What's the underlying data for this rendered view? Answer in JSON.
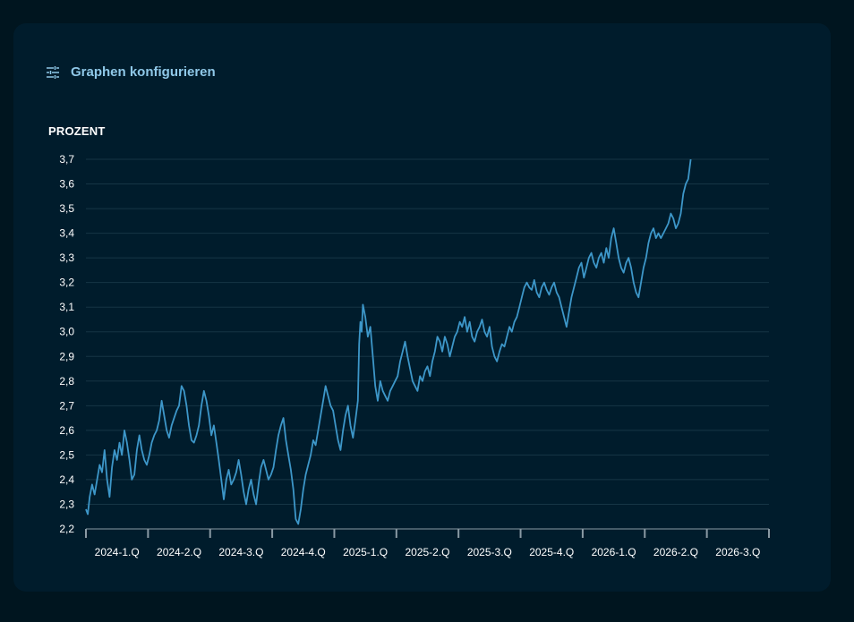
{
  "header": {
    "config_label": "Graphen konfigurieren",
    "config_icon": "sliders-icon"
  },
  "colors": {
    "page_bg": "#00151f",
    "card_bg": "#001c2c",
    "grid": "#163545",
    "line": "#3d97c9",
    "accent_text": "#8fc8e8",
    "text": "#ffffff"
  },
  "chart_data": {
    "type": "line",
    "ylabel": "PROZENT",
    "ylim": [
      2.2,
      3.7
    ],
    "yticks": [
      "2,2",
      "2,3",
      "2,4",
      "2,5",
      "2,6",
      "2,7",
      "2,8",
      "2,9",
      "3,0",
      "3,1",
      "3,2",
      "3,3",
      "3,4",
      "3,5",
      "3,6",
      "3,7"
    ],
    "xticks": [
      "2024-1.Q",
      "2024-2.Q",
      "2024-3.Q",
      "2024-4.Q",
      "2025-1.Q",
      "2025-2.Q",
      "2025-3.Q",
      "2025-4.Q",
      "2026-1.Q",
      "2026-2.Q",
      "2026-3.Q"
    ],
    "x_range_quarters": [
      0,
      11
    ],
    "grid": true,
    "series": [
      {
        "points": [
          [
            0.0,
            2.28
          ],
          [
            0.03,
            2.26
          ],
          [
            0.06,
            2.33
          ],
          [
            0.1,
            2.38
          ],
          [
            0.14,
            2.34
          ],
          [
            0.18,
            2.4
          ],
          [
            0.22,
            2.46
          ],
          [
            0.26,
            2.43
          ],
          [
            0.3,
            2.52
          ],
          [
            0.34,
            2.4
          ],
          [
            0.38,
            2.33
          ],
          [
            0.42,
            2.45
          ],
          [
            0.46,
            2.52
          ],
          [
            0.5,
            2.48
          ],
          [
            0.54,
            2.55
          ],
          [
            0.58,
            2.5
          ],
          [
            0.62,
            2.6
          ],
          [
            0.66,
            2.55
          ],
          [
            0.7,
            2.48
          ],
          [
            0.74,
            2.4
          ],
          [
            0.78,
            2.42
          ],
          [
            0.82,
            2.52
          ],
          [
            0.86,
            2.58
          ],
          [
            0.9,
            2.52
          ],
          [
            0.94,
            2.48
          ],
          [
            0.98,
            2.46
          ],
          [
            1.02,
            2.5
          ],
          [
            1.06,
            2.55
          ],
          [
            1.1,
            2.58
          ],
          [
            1.14,
            2.6
          ],
          [
            1.18,
            2.64
          ],
          [
            1.22,
            2.72
          ],
          [
            1.26,
            2.66
          ],
          [
            1.3,
            2.6
          ],
          [
            1.34,
            2.57
          ],
          [
            1.38,
            2.62
          ],
          [
            1.42,
            2.65
          ],
          [
            1.46,
            2.68
          ],
          [
            1.5,
            2.7
          ],
          [
            1.54,
            2.78
          ],
          [
            1.58,
            2.76
          ],
          [
            1.62,
            2.7
          ],
          [
            1.66,
            2.62
          ],
          [
            1.7,
            2.56
          ],
          [
            1.74,
            2.55
          ],
          [
            1.78,
            2.58
          ],
          [
            1.82,
            2.62
          ],
          [
            1.86,
            2.7
          ],
          [
            1.9,
            2.76
          ],
          [
            1.94,
            2.72
          ],
          [
            1.98,
            2.66
          ],
          [
            2.02,
            2.58
          ],
          [
            2.06,
            2.62
          ],
          [
            2.1,
            2.55
          ],
          [
            2.14,
            2.48
          ],
          [
            2.18,
            2.4
          ],
          [
            2.22,
            2.32
          ],
          [
            2.26,
            2.4
          ],
          [
            2.3,
            2.44
          ],
          [
            2.34,
            2.38
          ],
          [
            2.38,
            2.4
          ],
          [
            2.42,
            2.43
          ],
          [
            2.46,
            2.48
          ],
          [
            2.5,
            2.42
          ],
          [
            2.54,
            2.35
          ],
          [
            2.58,
            2.3
          ],
          [
            2.62,
            2.36
          ],
          [
            2.66,
            2.4
          ],
          [
            2.7,
            2.34
          ],
          [
            2.74,
            2.3
          ],
          [
            2.78,
            2.38
          ],
          [
            2.82,
            2.45
          ],
          [
            2.86,
            2.48
          ],
          [
            2.9,
            2.44
          ],
          [
            2.94,
            2.4
          ],
          [
            2.98,
            2.42
          ],
          [
            3.02,
            2.45
          ],
          [
            3.06,
            2.52
          ],
          [
            3.1,
            2.58
          ],
          [
            3.14,
            2.62
          ],
          [
            3.18,
            2.65
          ],
          [
            3.22,
            2.56
          ],
          [
            3.26,
            2.5
          ],
          [
            3.3,
            2.44
          ],
          [
            3.34,
            2.36
          ],
          [
            3.38,
            2.24
          ],
          [
            3.42,
            2.22
          ],
          [
            3.46,
            2.28
          ],
          [
            3.5,
            2.36
          ],
          [
            3.54,
            2.42
          ],
          [
            3.58,
            2.46
          ],
          [
            3.62,
            2.5
          ],
          [
            3.66,
            2.56
          ],
          [
            3.7,
            2.54
          ],
          [
            3.74,
            2.6
          ],
          [
            3.78,
            2.66
          ],
          [
            3.82,
            2.72
          ],
          [
            3.86,
            2.78
          ],
          [
            3.9,
            2.74
          ],
          [
            3.94,
            2.7
          ],
          [
            3.98,
            2.68
          ],
          [
            4.02,
            2.62
          ],
          [
            4.06,
            2.56
          ],
          [
            4.1,
            2.52
          ],
          [
            4.14,
            2.6
          ],
          [
            4.18,
            2.66
          ],
          [
            4.22,
            2.7
          ],
          [
            4.26,
            2.62
          ],
          [
            4.3,
            2.57
          ],
          [
            4.34,
            2.64
          ],
          [
            4.38,
            2.72
          ],
          [
            4.4,
            2.95
          ],
          [
            4.42,
            3.04
          ],
          [
            4.44,
            3.0
          ],
          [
            4.46,
            3.11
          ],
          [
            4.5,
            3.06
          ],
          [
            4.54,
            2.98
          ],
          [
            4.58,
            3.02
          ],
          [
            4.62,
            2.9
          ],
          [
            4.66,
            2.78
          ],
          [
            4.7,
            2.72
          ],
          [
            4.74,
            2.8
          ],
          [
            4.78,
            2.76
          ],
          [
            4.82,
            2.74
          ],
          [
            4.86,
            2.72
          ],
          [
            4.9,
            2.76
          ],
          [
            4.94,
            2.78
          ],
          [
            4.98,
            2.8
          ],
          [
            5.02,
            2.82
          ],
          [
            5.06,
            2.88
          ],
          [
            5.1,
            2.92
          ],
          [
            5.14,
            2.96
          ],
          [
            5.18,
            2.9
          ],
          [
            5.22,
            2.85
          ],
          [
            5.26,
            2.8
          ],
          [
            5.3,
            2.78
          ],
          [
            5.34,
            2.76
          ],
          [
            5.38,
            2.82
          ],
          [
            5.42,
            2.8
          ],
          [
            5.46,
            2.84
          ],
          [
            5.5,
            2.86
          ],
          [
            5.54,
            2.82
          ],
          [
            5.58,
            2.88
          ],
          [
            5.62,
            2.92
          ],
          [
            5.66,
            2.98
          ],
          [
            5.7,
            2.96
          ],
          [
            5.74,
            2.92
          ],
          [
            5.78,
            2.98
          ],
          [
            5.82,
            2.95
          ],
          [
            5.86,
            2.9
          ],
          [
            5.9,
            2.94
          ],
          [
            5.94,
            2.98
          ],
          [
            5.98,
            3.0
          ],
          [
            6.02,
            3.04
          ],
          [
            6.06,
            3.02
          ],
          [
            6.1,
            3.06
          ],
          [
            6.14,
            3.0
          ],
          [
            6.18,
            3.04
          ],
          [
            6.22,
            2.98
          ],
          [
            6.26,
            2.96
          ],
          [
            6.3,
            3.0
          ],
          [
            6.34,
            3.02
          ],
          [
            6.38,
            3.05
          ],
          [
            6.42,
            3.0
          ],
          [
            6.46,
            2.98
          ],
          [
            6.5,
            3.02
          ],
          [
            6.54,
            2.94
          ],
          [
            6.58,
            2.9
          ],
          [
            6.62,
            2.88
          ],
          [
            6.66,
            2.92
          ],
          [
            6.7,
            2.95
          ],
          [
            6.74,
            2.94
          ],
          [
            6.78,
            2.98
          ],
          [
            6.82,
            3.02
          ],
          [
            6.86,
            3.0
          ],
          [
            6.9,
            3.04
          ],
          [
            6.94,
            3.06
          ],
          [
            6.98,
            3.1
          ],
          [
            7.02,
            3.14
          ],
          [
            7.06,
            3.18
          ],
          [
            7.1,
            3.2
          ],
          [
            7.14,
            3.18
          ],
          [
            7.18,
            3.17
          ],
          [
            7.22,
            3.21
          ],
          [
            7.26,
            3.16
          ],
          [
            7.3,
            3.14
          ],
          [
            7.34,
            3.18
          ],
          [
            7.38,
            3.2
          ],
          [
            7.42,
            3.17
          ],
          [
            7.46,
            3.15
          ],
          [
            7.5,
            3.18
          ],
          [
            7.54,
            3.2
          ],
          [
            7.58,
            3.16
          ],
          [
            7.62,
            3.14
          ],
          [
            7.66,
            3.1
          ],
          [
            7.7,
            3.06
          ],
          [
            7.74,
            3.02
          ],
          [
            7.78,
            3.08
          ],
          [
            7.82,
            3.14
          ],
          [
            7.86,
            3.18
          ],
          [
            7.9,
            3.22
          ],
          [
            7.94,
            3.26
          ],
          [
            7.98,
            3.28
          ],
          [
            8.02,
            3.22
          ],
          [
            8.06,
            3.26
          ],
          [
            8.1,
            3.3
          ],
          [
            8.14,
            3.32
          ],
          [
            8.18,
            3.28
          ],
          [
            8.22,
            3.26
          ],
          [
            8.26,
            3.3
          ],
          [
            8.3,
            3.32
          ],
          [
            8.34,
            3.28
          ],
          [
            8.38,
            3.34
          ],
          [
            8.42,
            3.3
          ],
          [
            8.46,
            3.38
          ],
          [
            8.5,
            3.42
          ],
          [
            8.54,
            3.36
          ],
          [
            8.58,
            3.3
          ],
          [
            8.62,
            3.26
          ],
          [
            8.66,
            3.24
          ],
          [
            8.7,
            3.28
          ],
          [
            8.74,
            3.3
          ],
          [
            8.78,
            3.26
          ],
          [
            8.82,
            3.2
          ],
          [
            8.86,
            3.16
          ],
          [
            8.9,
            3.14
          ],
          [
            8.94,
            3.2
          ],
          [
            8.98,
            3.26
          ],
          [
            9.02,
            3.3
          ],
          [
            9.06,
            3.36
          ],
          [
            9.1,
            3.4
          ],
          [
            9.14,
            3.42
          ],
          [
            9.18,
            3.38
          ],
          [
            9.22,
            3.4
          ],
          [
            9.26,
            3.38
          ],
          [
            9.3,
            3.4
          ],
          [
            9.34,
            3.42
          ],
          [
            9.38,
            3.44
          ],
          [
            9.42,
            3.48
          ],
          [
            9.46,
            3.46
          ],
          [
            9.5,
            3.42
          ],
          [
            9.54,
            3.44
          ],
          [
            9.58,
            3.48
          ],
          [
            9.62,
            3.56
          ],
          [
            9.66,
            3.6
          ],
          [
            9.7,
            3.62
          ],
          [
            9.72,
            3.66
          ],
          [
            9.74,
            3.7
          ]
        ]
      }
    ]
  }
}
